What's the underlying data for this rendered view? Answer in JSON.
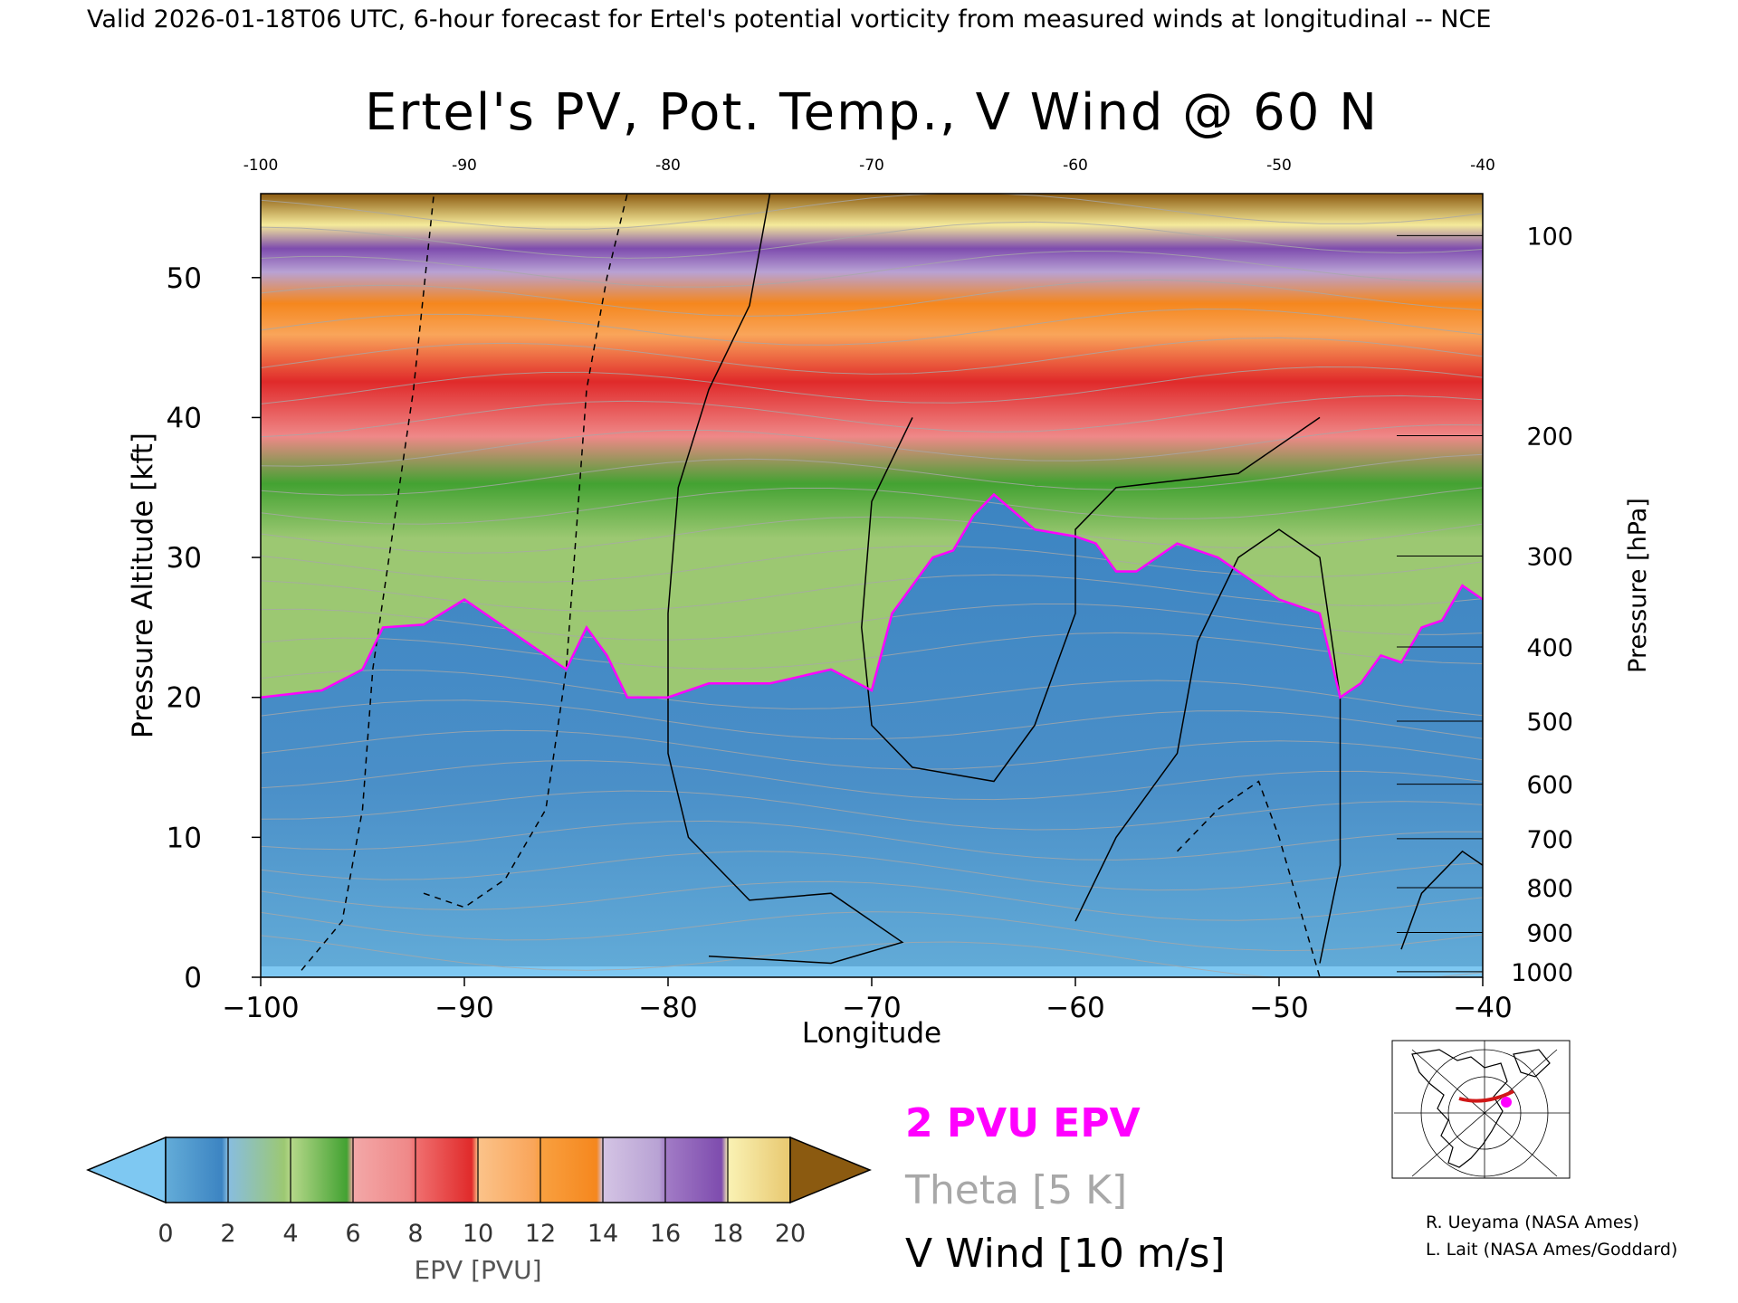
{
  "header": {
    "valid_line": "Valid 2026-01-18T06 UTC, 6-hour forecast for Ertel's potential vorticity from measured winds at longitudinal -- NCE"
  },
  "chart_data": {
    "type": "heatmap",
    "title": "Ertel's PV, Pot. Temp., V Wind @ 60 N",
    "xlabel": "Longitude",
    "ylabel_left": "Pressure Altitude [kft]",
    "ylabel_right": "Pressure [hPa]",
    "xlim": [
      -100,
      -40
    ],
    "ylim": [
      0,
      56
    ],
    "x_ticks": [
      -100,
      -90,
      -80,
      -70,
      -60,
      -50,
      -40
    ],
    "y_ticks": [
      0,
      10,
      20,
      30,
      40,
      50
    ],
    "pressure_ticks": [
      {
        "hPa": "100",
        "kft": 53.0
      },
      {
        "hPa": "200",
        "kft": 38.7
      },
      {
        "hPa": "300",
        "kft": 30.1
      },
      {
        "hPa": "400",
        "kft": 23.6
      },
      {
        "hPa": "500",
        "kft": 18.3
      },
      {
        "hPa": "600",
        "kft": 13.8
      },
      {
        "hPa": "700",
        "kft": 9.9
      },
      {
        "hPa": "800",
        "kft": 6.4
      },
      {
        "hPa": "900",
        "kft": 3.2
      },
      {
        "hPa": "1000",
        "kft": 0.4
      }
    ],
    "colorbar": {
      "label": "EPV [PVU]",
      "ticks": [
        "0",
        "2",
        "4",
        "6",
        "8",
        "10",
        "12",
        "14",
        "16",
        "18",
        "20"
      ],
      "colors": [
        "#63acd8",
        "#3c84c2",
        "#9cc872",
        "#43a232",
        "#ef8888",
        "#e02a2a",
        "#f9a55a",
        "#f5871e",
        "#b8a2d4",
        "#7e4cae",
        "#f5ea9a"
      ],
      "under_color": "#7ec8f2",
      "over_color": "#8b5a10"
    },
    "tropopause_2pvu": {
      "lon": [
        -100,
        -97,
        -95,
        -94,
        -92,
        -90,
        -88,
        -86,
        -85,
        -84,
        -83,
        -82,
        -80,
        -78,
        -75,
        -72,
        -70,
        -69,
        -67,
        -66,
        -65,
        -64,
        -62,
        -60,
        -59,
        -58,
        -57,
        -55,
        -53,
        -50,
        -48,
        -47,
        -46,
        -45,
        -44,
        -43,
        -42,
        -41,
        -40
      ],
      "kft": [
        20,
        20.5,
        22,
        25,
        25.2,
        27,
        25,
        23,
        22,
        25,
        23,
        20,
        20,
        21,
        21,
        22,
        20.5,
        26,
        30,
        30.5,
        33,
        34.5,
        32,
        31.5,
        31,
        29,
        29,
        31,
        30,
        27,
        26,
        20,
        21,
        23,
        22.5,
        25,
        25.5,
        28,
        27
      ]
    },
    "legend": [
      {
        "label": "2 PVU EPV",
        "color": "#ff00ff"
      },
      {
        "label": "Theta [5 K]",
        "color": "#a8a8a8"
      },
      {
        "label": "V Wind [10 m/s]",
        "color": "#000000"
      }
    ],
    "grid": false
  },
  "map_inset": {
    "section_color": "#d01818",
    "marker_color": "#ff00ff"
  },
  "credits": {
    "line1": "R. Ueyama (NASA Ames)",
    "line2": "L. Lait (NASA Ames/Goddard)"
  }
}
